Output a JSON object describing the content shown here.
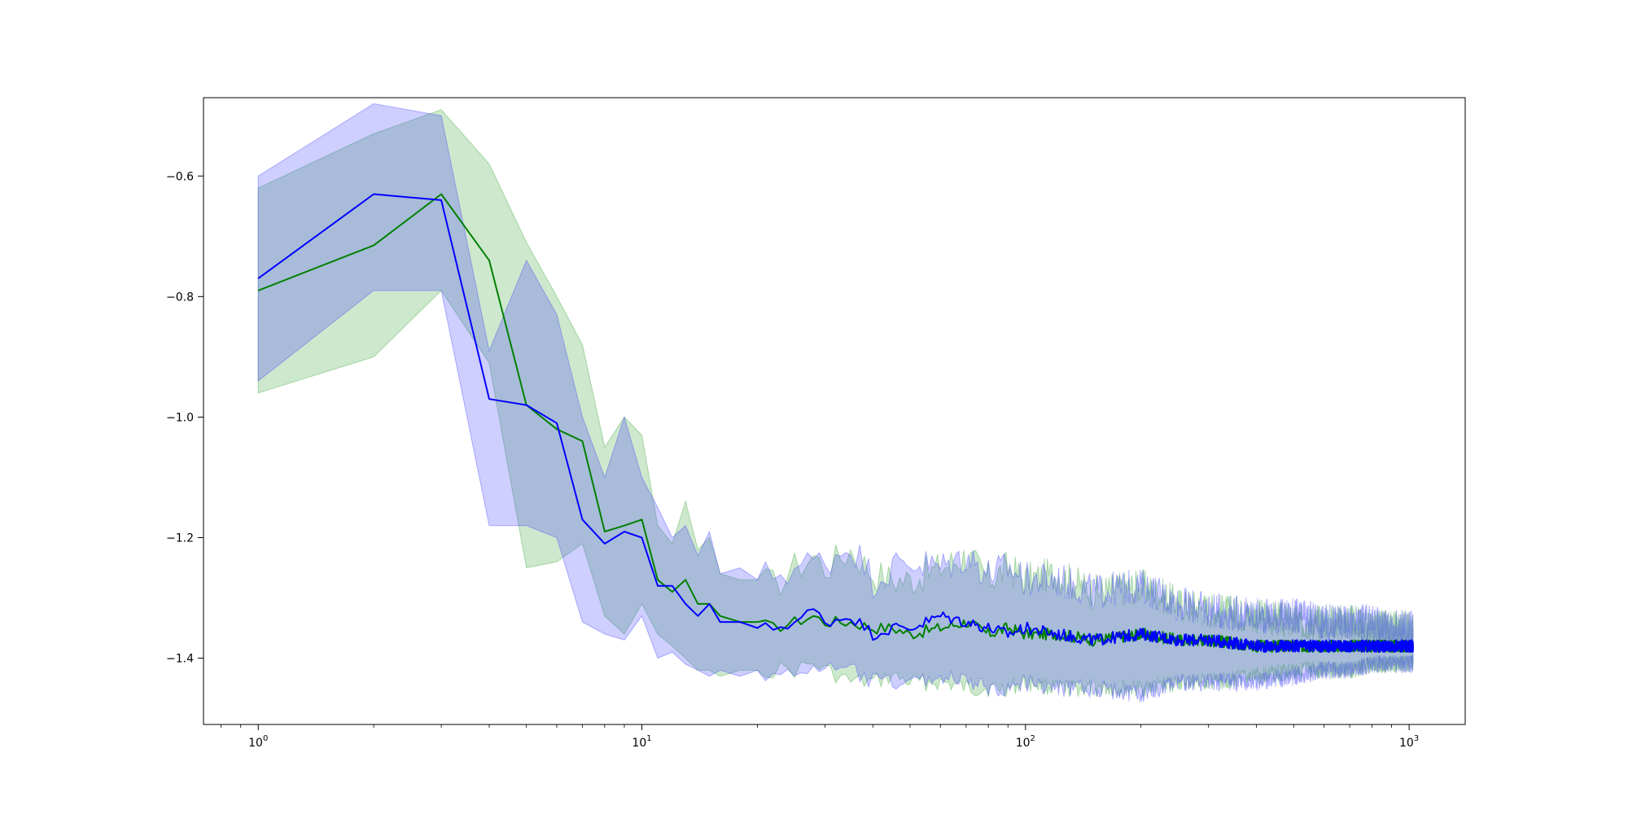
{
  "chart_data": {
    "type": "line",
    "title": "",
    "xlabel": "",
    "ylabel": "",
    "xscale": "log",
    "xlim": [
      0.72,
      1400
    ],
    "ylim": [
      -1.51,
      -0.47
    ],
    "grid": false,
    "legend": "none",
    "x_ticks": [
      {
        "base": "10",
        "exp": "0",
        "value": 1
      },
      {
        "base": "10",
        "exp": "1",
        "value": 10
      },
      {
        "base": "10",
        "exp": "2",
        "value": 100
      },
      {
        "base": "10",
        "exp": "3",
        "value": 1000
      }
    ],
    "y_ticks": [
      {
        "label": "−1.4",
        "value": -1.4
      },
      {
        "label": "−1.2",
        "value": -1.2
      },
      {
        "label": "−1.0",
        "value": -1.0
      },
      {
        "label": "−0.8",
        "value": -0.8
      },
      {
        "label": "−0.6",
        "value": -0.6
      }
    ],
    "series": [
      {
        "color": "#008000",
        "band_color": "#2ca02c",
        "band_opacity": 0.24,
        "x": [
          1,
          2,
          3,
          4,
          5,
          6,
          7,
          8,
          9,
          10,
          11,
          12,
          13,
          14,
          15,
          16,
          18,
          20,
          22,
          25,
          28,
          30,
          35,
          40,
          45,
          50,
          60,
          70,
          80,
          90,
          100,
          120,
          150,
          200,
          250,
          300,
          400,
          500,
          600,
          700,
          800,
          900,
          1000,
          1024
        ],
        "y": [
          -0.79,
          -0.715,
          -0.63,
          -0.74,
          -0.98,
          -1.02,
          -1.04,
          -1.19,
          -1.18,
          -1.17,
          -1.27,
          -1.29,
          -1.27,
          -1.31,
          -1.31,
          -1.33,
          -1.34,
          -1.34,
          -1.35,
          -1.34,
          -1.33,
          -1.34,
          -1.34,
          -1.35,
          -1.35,
          -1.36,
          -1.35,
          -1.34,
          -1.36,
          -1.35,
          -1.36,
          -1.36,
          -1.37,
          -1.36,
          -1.37,
          -1.37,
          -1.38,
          -1.38,
          -1.38,
          -1.38,
          -1.38,
          -1.38,
          -1.38,
          -1.38
        ],
        "upper": [
          -0.62,
          -0.53,
          -0.49,
          -0.58,
          -0.71,
          -0.8,
          -0.88,
          -1.05,
          -1.0,
          -1.03,
          -1.18,
          -1.21,
          -1.14,
          -1.22,
          -1.2,
          -1.26,
          -1.27,
          -1.27,
          -1.28,
          -1.25,
          -1.23,
          -1.25,
          -1.22,
          -1.26,
          -1.27,
          -1.27,
          -1.25,
          -1.23,
          -1.27,
          -1.25,
          -1.27,
          -1.26,
          -1.29,
          -1.28,
          -1.31,
          -1.32,
          -1.33,
          -1.34,
          -1.34,
          -1.34,
          -1.35,
          -1.35,
          -1.35,
          -1.35
        ],
        "lower": [
          -0.96,
          -0.9,
          -0.79,
          -0.91,
          -1.25,
          -1.24,
          -1.21,
          -1.33,
          -1.36,
          -1.31,
          -1.36,
          -1.38,
          -1.4,
          -1.42,
          -1.42,
          -1.43,
          -1.42,
          -1.42,
          -1.42,
          -1.42,
          -1.41,
          -1.42,
          -1.44,
          -1.44,
          -1.43,
          -1.44,
          -1.44,
          -1.45,
          -1.45,
          -1.45,
          -1.44,
          -1.45,
          -1.45,
          -1.45,
          -1.44,
          -1.44,
          -1.43,
          -1.42,
          -1.42,
          -1.42,
          -1.41,
          -1.41,
          -1.41,
          -1.41
        ]
      },
      {
        "color": "#0000ff",
        "band_color": "#3333ff",
        "band_opacity": 0.24,
        "x": [
          1,
          2,
          3,
          4,
          5,
          6,
          7,
          8,
          9,
          10,
          11,
          12,
          13,
          14,
          15,
          16,
          18,
          20,
          22,
          25,
          28,
          30,
          35,
          40,
          45,
          50,
          60,
          70,
          80,
          90,
          100,
          120,
          150,
          200,
          250,
          300,
          400,
          500,
          600,
          700,
          800,
          900,
          1000,
          1024
        ],
        "y": [
          -0.77,
          -0.63,
          -0.64,
          -0.97,
          -0.98,
          -1.01,
          -1.17,
          -1.21,
          -1.19,
          -1.2,
          -1.28,
          -1.28,
          -1.31,
          -1.33,
          -1.31,
          -1.34,
          -1.34,
          -1.35,
          -1.35,
          -1.34,
          -1.32,
          -1.34,
          -1.33,
          -1.36,
          -1.35,
          -1.35,
          -1.33,
          -1.34,
          -1.35,
          -1.36,
          -1.35,
          -1.36,
          -1.37,
          -1.36,
          -1.37,
          -1.37,
          -1.38,
          -1.38,
          -1.38,
          -1.38,
          -1.38,
          -1.38,
          -1.38,
          -1.38
        ],
        "upper": [
          -0.6,
          -0.48,
          -0.5,
          -0.89,
          -0.74,
          -0.83,
          -1.0,
          -1.1,
          -1.0,
          -1.1,
          -1.15,
          -1.2,
          -1.18,
          -1.23,
          -1.19,
          -1.26,
          -1.25,
          -1.27,
          -1.26,
          -1.25,
          -1.24,
          -1.24,
          -1.21,
          -1.27,
          -1.25,
          -1.24,
          -1.25,
          -1.23,
          -1.26,
          -1.25,
          -1.27,
          -1.27,
          -1.29,
          -1.28,
          -1.31,
          -1.32,
          -1.33,
          -1.33,
          -1.34,
          -1.34,
          -1.34,
          -1.35,
          -1.35,
          -1.35
        ],
        "lower": [
          -0.94,
          -0.79,
          -0.79,
          -1.18,
          -1.18,
          -1.2,
          -1.34,
          -1.36,
          -1.37,
          -1.33,
          -1.4,
          -1.39,
          -1.41,
          -1.42,
          -1.43,
          -1.42,
          -1.43,
          -1.42,
          -1.43,
          -1.43,
          -1.41,
          -1.42,
          -1.42,
          -1.44,
          -1.44,
          -1.44,
          -1.43,
          -1.44,
          -1.45,
          -1.45,
          -1.44,
          -1.45,
          -1.45,
          -1.46,
          -1.44,
          -1.44,
          -1.44,
          -1.43,
          -1.42,
          -1.42,
          -1.41,
          -1.41,
          -1.41,
          -1.41
        ]
      }
    ]
  }
}
